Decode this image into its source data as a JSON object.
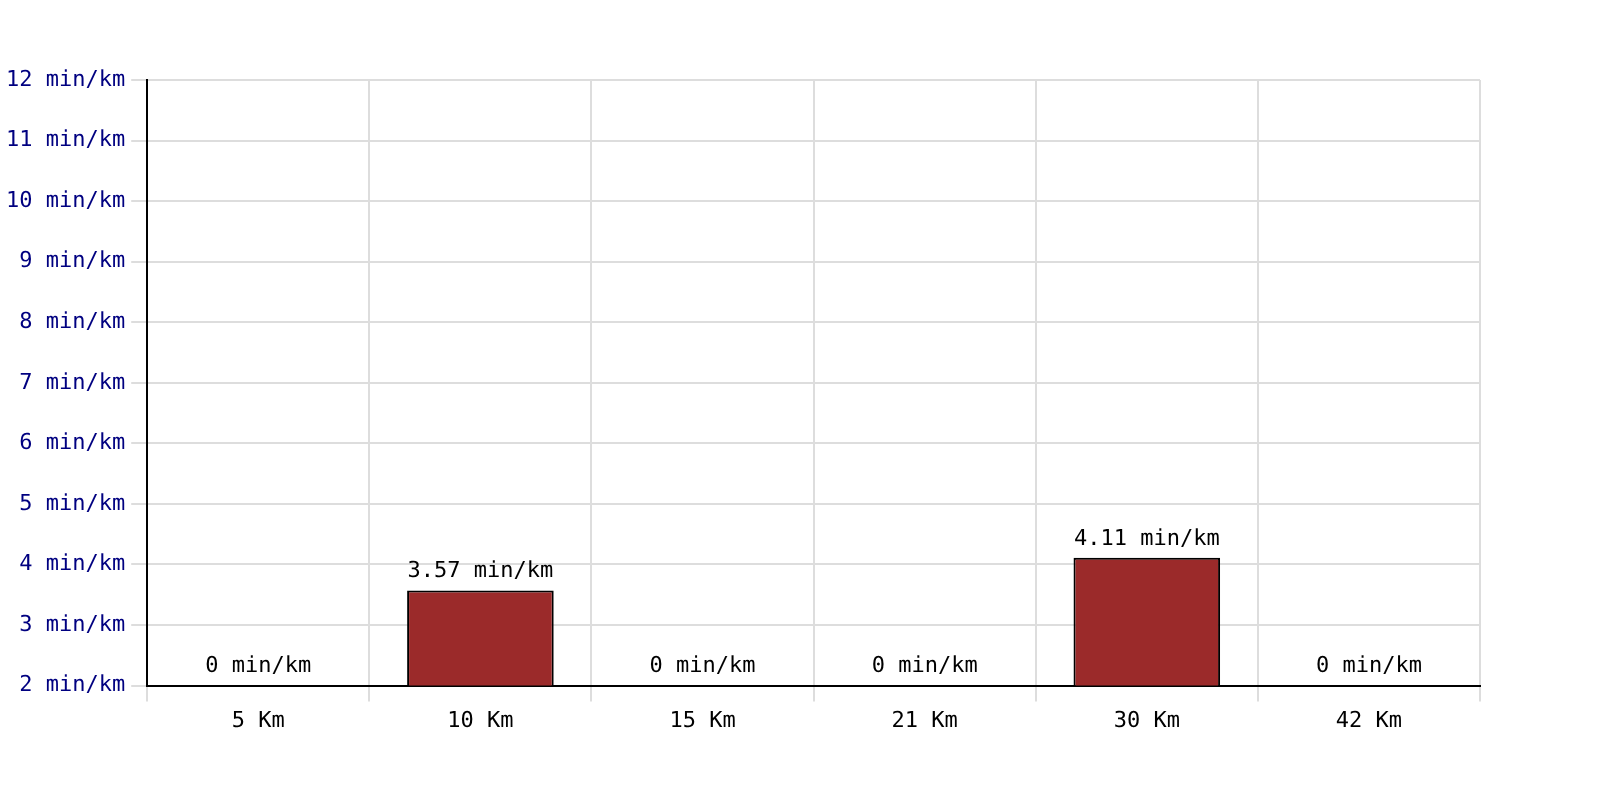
{
  "chart_data": {
    "type": "bar",
    "categories": [
      "5 Km",
      "10 Km",
      "15 Km",
      "21 Km",
      "30 Km",
      "42 Km"
    ],
    "values": [
      null,
      3.57,
      null,
      null,
      4.11,
      null
    ],
    "value_labels": [
      "0 min/km",
      "3.57 min/km",
      "0 min/km",
      "0 min/km",
      "4.11 min/km",
      "0 min/km"
    ],
    "color": "#9b2a2a",
    "ylim": [
      2,
      12
    ],
    "yticks": [
      {
        "value": 2,
        "label": "2 min/km"
      },
      {
        "value": 3,
        "label": "3 min/km"
      },
      {
        "value": 4,
        "label": "4 min/km"
      },
      {
        "value": 5,
        "label": "5 min/km"
      },
      {
        "value": 6,
        "label": "6 min/km"
      },
      {
        "value": 7,
        "label": "7 min/km"
      },
      {
        "value": 8,
        "label": "8 min/km"
      },
      {
        "value": 9,
        "label": "9 min/km"
      },
      {
        "value": 10,
        "label": "10 min/km"
      },
      {
        "value": 11,
        "label": "11 min/km"
      },
      {
        "value": 12,
        "label": "12 min/km"
      }
    ],
    "grid": true
  }
}
